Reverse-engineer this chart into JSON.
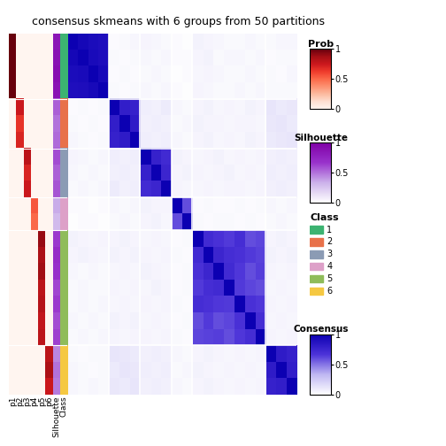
{
  "title": "consensus skmeans with 6 groups from 50 partitions",
  "n_samples": 22,
  "group_sizes": [
    4,
    3,
    3,
    2,
    7,
    3
  ],
  "group_labels": [
    1,
    2,
    3,
    4,
    5,
    6
  ],
  "class_colors": [
    "#3CB371",
    "#E8714A",
    "#8B9BB4",
    "#DDA0C8",
    "#8FBC5A",
    "#F5C842"
  ],
  "prob_cmap": "Reds",
  "sil_cmap": "Purples",
  "consensus_cmap": "custom_blue_purple",
  "consensus_matrix": [
    [
      1.0,
      0.95,
      0.92,
      0.9,
      0.02,
      0.03,
      0.04,
      0.05,
      0.04,
      0.03,
      0.02,
      0.01,
      0.06,
      0.05,
      0.04,
      0.03,
      0.03,
      0.04,
      0.03,
      0.03,
      0.04,
      0.04
    ],
    [
      0.95,
      1.0,
      0.93,
      0.91,
      0.03,
      0.02,
      0.03,
      0.04,
      0.03,
      0.04,
      0.02,
      0.02,
      0.05,
      0.06,
      0.03,
      0.04,
      0.04,
      0.03,
      0.04,
      0.02,
      0.03,
      0.03
    ],
    [
      0.92,
      0.93,
      1.0,
      0.94,
      0.02,
      0.03,
      0.02,
      0.03,
      0.04,
      0.03,
      0.01,
      0.02,
      0.04,
      0.05,
      0.04,
      0.03,
      0.03,
      0.04,
      0.03,
      0.03,
      0.02,
      0.04
    ],
    [
      0.9,
      0.91,
      0.94,
      1.0,
      0.03,
      0.02,
      0.03,
      0.04,
      0.03,
      0.04,
      0.02,
      0.01,
      0.05,
      0.04,
      0.03,
      0.03,
      0.04,
      0.03,
      0.04,
      0.03,
      0.03,
      0.03
    ],
    [
      0.02,
      0.03,
      0.02,
      0.03,
      1.0,
      0.8,
      0.78,
      0.08,
      0.07,
      0.09,
      0.04,
      0.03,
      0.05,
      0.06,
      0.04,
      0.05,
      0.04,
      0.06,
      0.05,
      0.12,
      0.1,
      0.11
    ],
    [
      0.03,
      0.02,
      0.03,
      0.02,
      0.8,
      1.0,
      0.82,
      0.07,
      0.08,
      0.07,
      0.03,
      0.04,
      0.06,
      0.05,
      0.05,
      0.04,
      0.05,
      0.05,
      0.04,
      0.11,
      0.12,
      0.1
    ],
    [
      0.04,
      0.03,
      0.02,
      0.03,
      0.78,
      0.82,
      1.0,
      0.08,
      0.07,
      0.08,
      0.04,
      0.03,
      0.05,
      0.06,
      0.04,
      0.05,
      0.04,
      0.06,
      0.05,
      0.1,
      0.11,
      0.12
    ],
    [
      0.05,
      0.04,
      0.03,
      0.04,
      0.08,
      0.07,
      0.08,
      1.0,
      0.78,
      0.72,
      0.06,
      0.05,
      0.04,
      0.05,
      0.06,
      0.04,
      0.05,
      0.04,
      0.05,
      0.07,
      0.08,
      0.07
    ],
    [
      0.04,
      0.03,
      0.04,
      0.03,
      0.07,
      0.08,
      0.07,
      0.78,
      1.0,
      0.75,
      0.05,
      0.06,
      0.05,
      0.04,
      0.05,
      0.06,
      0.04,
      0.05,
      0.04,
      0.08,
      0.07,
      0.08
    ],
    [
      0.03,
      0.04,
      0.03,
      0.04,
      0.09,
      0.07,
      0.08,
      0.72,
      0.75,
      1.0,
      0.05,
      0.04,
      0.04,
      0.05,
      0.04,
      0.05,
      0.05,
      0.04,
      0.05,
      0.07,
      0.08,
      0.07
    ],
    [
      0.02,
      0.02,
      0.01,
      0.02,
      0.04,
      0.03,
      0.04,
      0.06,
      0.05,
      0.05,
      1.0,
      0.6,
      0.02,
      0.03,
      0.02,
      0.02,
      0.03,
      0.02,
      0.03,
      0.04,
      0.03,
      0.04
    ],
    [
      0.01,
      0.02,
      0.02,
      0.01,
      0.03,
      0.04,
      0.03,
      0.05,
      0.06,
      0.04,
      0.6,
      1.0,
      0.03,
      0.02,
      0.03,
      0.03,
      0.02,
      0.03,
      0.02,
      0.03,
      0.04,
      0.03
    ],
    [
      0.06,
      0.05,
      0.04,
      0.05,
      0.05,
      0.06,
      0.05,
      0.04,
      0.05,
      0.04,
      0.02,
      0.03,
      1.0,
      0.72,
      0.68,
      0.65,
      0.7,
      0.6,
      0.62,
      0.05,
      0.06,
      0.05
    ],
    [
      0.05,
      0.06,
      0.05,
      0.04,
      0.06,
      0.05,
      0.06,
      0.05,
      0.04,
      0.05,
      0.03,
      0.02,
      0.72,
      1.0,
      0.75,
      0.7,
      0.68,
      0.65,
      0.63,
      0.06,
      0.05,
      0.06
    ],
    [
      0.04,
      0.03,
      0.04,
      0.03,
      0.04,
      0.05,
      0.04,
      0.06,
      0.05,
      0.04,
      0.02,
      0.03,
      0.68,
      0.75,
      1.0,
      0.72,
      0.66,
      0.6,
      0.64,
      0.05,
      0.04,
      0.05
    ],
    [
      0.03,
      0.04,
      0.03,
      0.03,
      0.05,
      0.04,
      0.05,
      0.04,
      0.06,
      0.05,
      0.02,
      0.03,
      0.65,
      0.7,
      0.72,
      1.0,
      0.65,
      0.62,
      0.6,
      0.04,
      0.05,
      0.04
    ],
    [
      0.03,
      0.04,
      0.03,
      0.04,
      0.04,
      0.05,
      0.04,
      0.05,
      0.04,
      0.05,
      0.03,
      0.02,
      0.7,
      0.68,
      0.66,
      0.65,
      1.0,
      0.68,
      0.66,
      0.05,
      0.04,
      0.05
    ],
    [
      0.04,
      0.03,
      0.04,
      0.03,
      0.06,
      0.05,
      0.06,
      0.04,
      0.05,
      0.04,
      0.02,
      0.03,
      0.6,
      0.65,
      0.6,
      0.62,
      0.68,
      1.0,
      0.7,
      0.04,
      0.05,
      0.04
    ],
    [
      0.03,
      0.04,
      0.03,
      0.04,
      0.05,
      0.04,
      0.05,
      0.05,
      0.04,
      0.05,
      0.03,
      0.02,
      0.62,
      0.63,
      0.64,
      0.6,
      0.66,
      0.7,
      1.0,
      0.05,
      0.04,
      0.05
    ],
    [
      0.03,
      0.02,
      0.03,
      0.03,
      0.12,
      0.11,
      0.1,
      0.07,
      0.08,
      0.07,
      0.04,
      0.03,
      0.05,
      0.06,
      0.05,
      0.04,
      0.05,
      0.04,
      0.05,
      1.0,
      0.82,
      0.78
    ],
    [
      0.04,
      0.03,
      0.02,
      0.03,
      0.1,
      0.12,
      0.11,
      0.08,
      0.07,
      0.08,
      0.03,
      0.04,
      0.06,
      0.05,
      0.04,
      0.05,
      0.04,
      0.05,
      0.04,
      0.82,
      1.0,
      0.8
    ],
    [
      0.04,
      0.03,
      0.04,
      0.03,
      0.11,
      0.1,
      0.12,
      0.07,
      0.08,
      0.07,
      0.04,
      0.03,
      0.05,
      0.06,
      0.05,
      0.04,
      0.05,
      0.04,
      0.05,
      0.78,
      0.8,
      1.0
    ]
  ],
  "prob_col": [
    1.0,
    1.0,
    1.0,
    1.0,
    0.75,
    0.65,
    0.7,
    0.8,
    0.7,
    0.75,
    0.55,
    0.5,
    0.9,
    0.85,
    0.88,
    0.8,
    0.82,
    0.78,
    0.8,
    0.8,
    0.85,
    0.75
  ],
  "sil_col": [
    0.85,
    0.88,
    0.9,
    0.87,
    0.55,
    0.5,
    0.52,
    0.6,
    0.55,
    0.58,
    0.35,
    0.3,
    0.65,
    0.7,
    0.68,
    0.62,
    0.65,
    0.6,
    0.63,
    0.45,
    0.5,
    0.48
  ],
  "class_col": [
    0,
    1,
    2,
    3,
    4,
    5
  ]
}
